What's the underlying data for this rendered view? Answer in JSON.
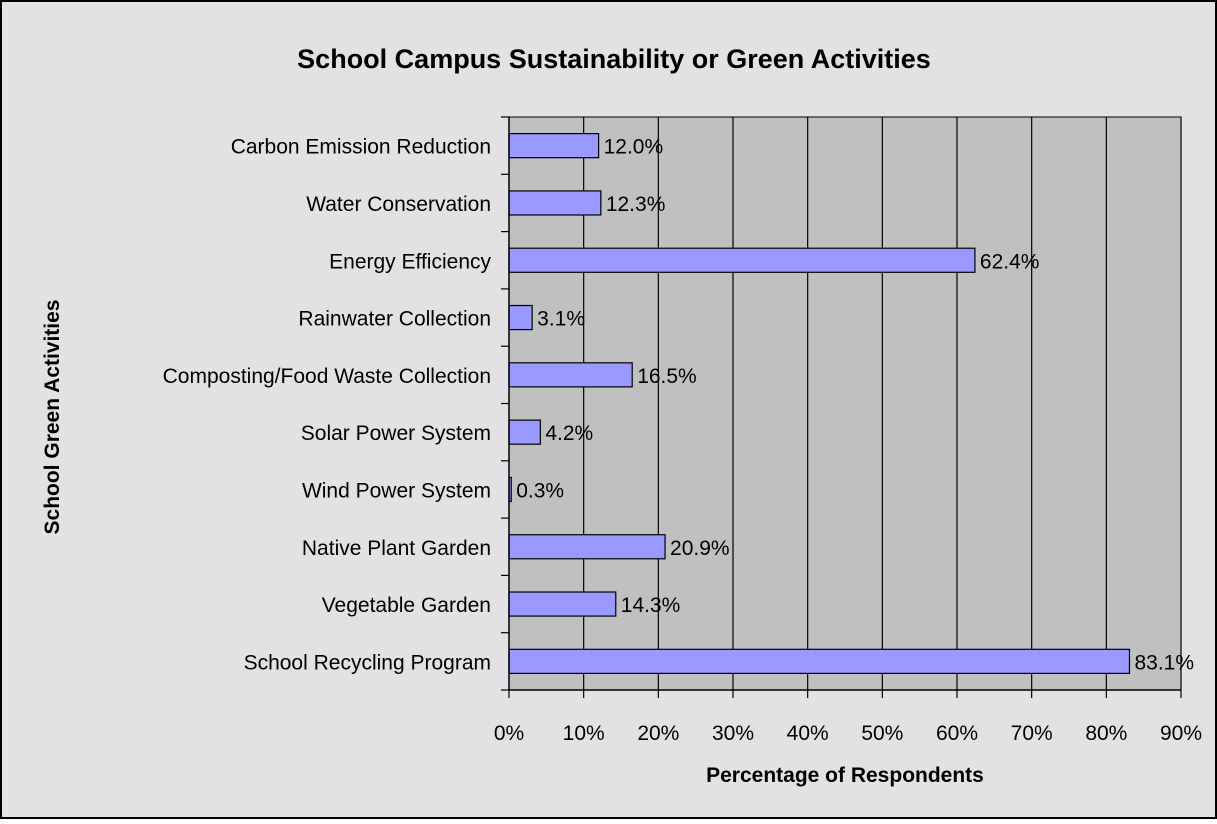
{
  "chart_data": {
    "type": "bar",
    "orientation": "horizontal",
    "title": "School Campus Sustainability or Green Activities",
    "xlabel": "Percentage of Respondents",
    "ylabel": "School Green Activities",
    "categories": [
      "Carbon Emission Reduction",
      "Water Conservation",
      "Energy Efficiency",
      "Rainwater Collection",
      "Composting/Food Waste Collection",
      "Solar Power System",
      "Wind Power System",
      "Native Plant Garden",
      "Vegetable Garden",
      "School Recycling Program"
    ],
    "values": [
      12.0,
      12.3,
      62.4,
      3.1,
      16.5,
      4.2,
      0.3,
      20.9,
      14.3,
      83.1
    ],
    "data_labels": [
      "12.0%",
      "12.3%",
      "62.4%",
      "3.1%",
      "16.5%",
      "4.2%",
      "0.3%",
      "20.9%",
      "14.3%",
      "83.1%"
    ],
    "xlim": [
      0,
      90
    ],
    "xticks": [
      0,
      10,
      20,
      30,
      40,
      50,
      60,
      70,
      80,
      90
    ],
    "xtick_labels": [
      "0%",
      "10%",
      "20%",
      "30%",
      "40%",
      "50%",
      "60%",
      "70%",
      "80%",
      "90%"
    ],
    "grid": "vertical",
    "legend": "none",
    "colors": {
      "background": "#e3e1e3",
      "plot_area": "#c0c0c0",
      "bar_fill": "#9999ff",
      "bar_stroke": "#000000",
      "gridline": "#000000",
      "text": "#000000"
    }
  }
}
